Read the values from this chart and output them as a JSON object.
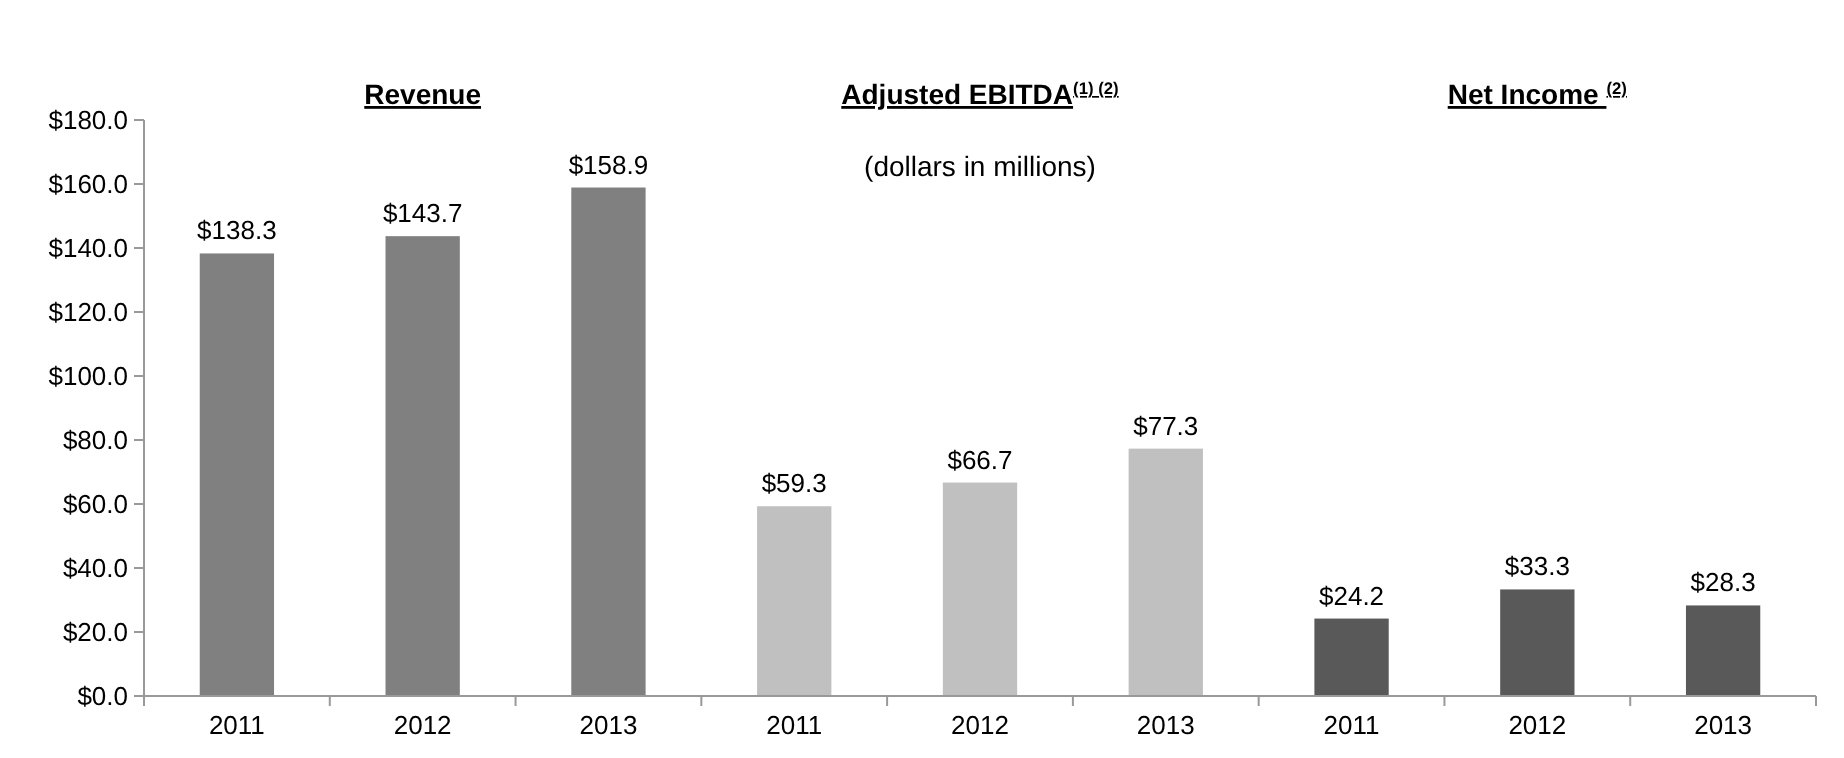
{
  "chart_data": {
    "type": "bar",
    "categories": [
      "2011",
      "2012",
      "2013",
      "2011",
      "2012",
      "2013",
      "2011",
      "2012",
      "2013"
    ],
    "values": [
      138.3,
      143.7,
      158.9,
      59.3,
      66.7,
      77.3,
      24.2,
      33.3,
      28.3
    ],
    "colors": [
      "#808080",
      "#808080",
      "#808080",
      "#c0c0c0",
      "#c0c0c0",
      "#c0c0c0",
      "#595959",
      "#595959",
      "#595959"
    ],
    "value_labels": [
      "$138.3",
      "$143.7",
      "$158.9",
      "$59.3",
      "$66.7",
      "$77.3",
      "$24.2",
      "$33.3",
      "$28.3"
    ],
    "ylim": [
      0,
      180
    ],
    "yticks": [
      {
        "value": 0,
        "label": "$0.0"
      },
      {
        "value": 20,
        "label": "$20.0"
      },
      {
        "value": 40,
        "label": "$40.0"
      },
      {
        "value": 60,
        "label": "$60.0"
      },
      {
        "value": 80,
        "label": "$80.0"
      },
      {
        "value": 100,
        "label": "$100.0"
      },
      {
        "value": 120,
        "label": "$120.0"
      },
      {
        "value": 140,
        "label": "$140.0"
      },
      {
        "value": 160,
        "label": "$160.0"
      },
      {
        "value": 180,
        "label": "$180.0"
      }
    ],
    "annotations": [
      "Revenue",
      "Adjusted EBITDA$^{(1) (2)}$",
      "Net Income $^{(2)}$",
      "(dollars in millions)"
    ]
  }
}
